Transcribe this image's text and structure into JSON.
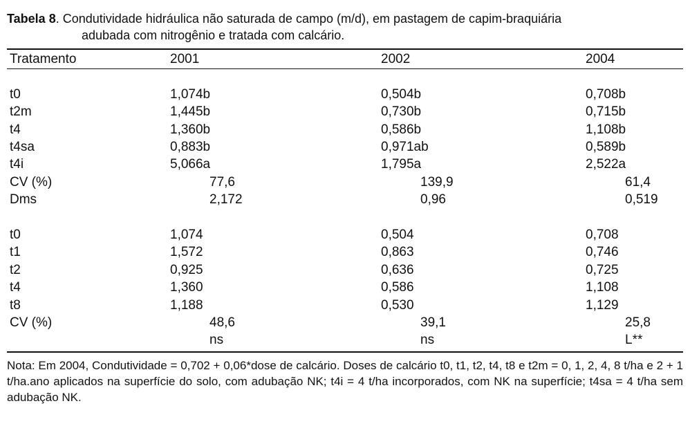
{
  "caption": {
    "label": "Tabela 8",
    "text_line1": ". Condutividade hidráulica não saturada de campo (m/d), em pastagem de capim-braquiária",
    "text_line2": "adubada com nitrogênio e tratada com calcário."
  },
  "table": {
    "headers": [
      "Tratamento",
      "2001",
      "2002",
      "2004"
    ],
    "section1": {
      "rows": [
        {
          "name": "t0",
          "v2001": "1,074",
          "l2001": "b",
          "v2002": "0,504",
          "l2002": "b",
          "v2004": "0,708",
          "l2004": "b"
        },
        {
          "name": "t2m",
          "v2001": "1,445",
          "l2001": "b",
          "v2002": "0,730",
          "l2002": "b",
          "v2004": "0,715",
          "l2004": "b"
        },
        {
          "name": "t4",
          "v2001": "1,360",
          "l2001": "b",
          "v2002": "0,586",
          "l2002": "b",
          "v2004": "1,108",
          "l2004": "b"
        },
        {
          "name": "t4sa",
          "v2001": "0,883",
          "l2001": "b",
          "v2002": "0,971",
          "l2002": "ab",
          "v2004": "0,589",
          "l2004": "b"
        },
        {
          "name": "t4i",
          "v2001": "5,066",
          "l2001": "a",
          "v2002": "1,795",
          "l2002": "a",
          "v2004": "2,522",
          "l2004": "a"
        }
      ],
      "stats": [
        {
          "name": "CV (%)",
          "v2001": "77,6",
          "v2002": "139,9",
          "v2004": "61,4"
        },
        {
          "name": "Dms",
          "v2001": "2,172",
          "v2002": "0,96",
          "v2004": "0,519"
        }
      ]
    },
    "section2": {
      "rows": [
        {
          "name": "t0",
          "v2001": "1,074",
          "v2002": "0,504",
          "v2004": "0,708"
        },
        {
          "name": "t1",
          "v2001": "1,572",
          "v2002": "0,863",
          "v2004": "0,746"
        },
        {
          "name": "t2",
          "v2001": "0,925",
          "v2002": "0,636",
          "v2004": "0,725"
        },
        {
          "name": "t4",
          "v2001": "1,360",
          "v2002": "0,586",
          "v2004": "1,108"
        },
        {
          "name": "t8",
          "v2001": "1,188",
          "v2002": "0,530",
          "v2004": "1,129"
        }
      ],
      "stats": [
        {
          "name": "CV (%)",
          "v2001": "48,6",
          "v2002": "39,1",
          "v2004": "25,8"
        },
        {
          "name": "",
          "v2001": "ns",
          "v2002": "ns",
          "v2004": "L**"
        }
      ]
    }
  },
  "note": "Nota: Em 2004, Condutividade = 0,702 + 0,06*dose de calcário. Doses de calcário t0, t1, t2, t4, t8 e t2m = 0, 1, 2, 4, 8 t/ha e 2 + 1 t/ha.ano aplicados na superfície do solo, com adubação NK; t4i = 4 t/ha incorporados, com NK na superfície; t4sa = 4 t/ha sem adubação NK."
}
